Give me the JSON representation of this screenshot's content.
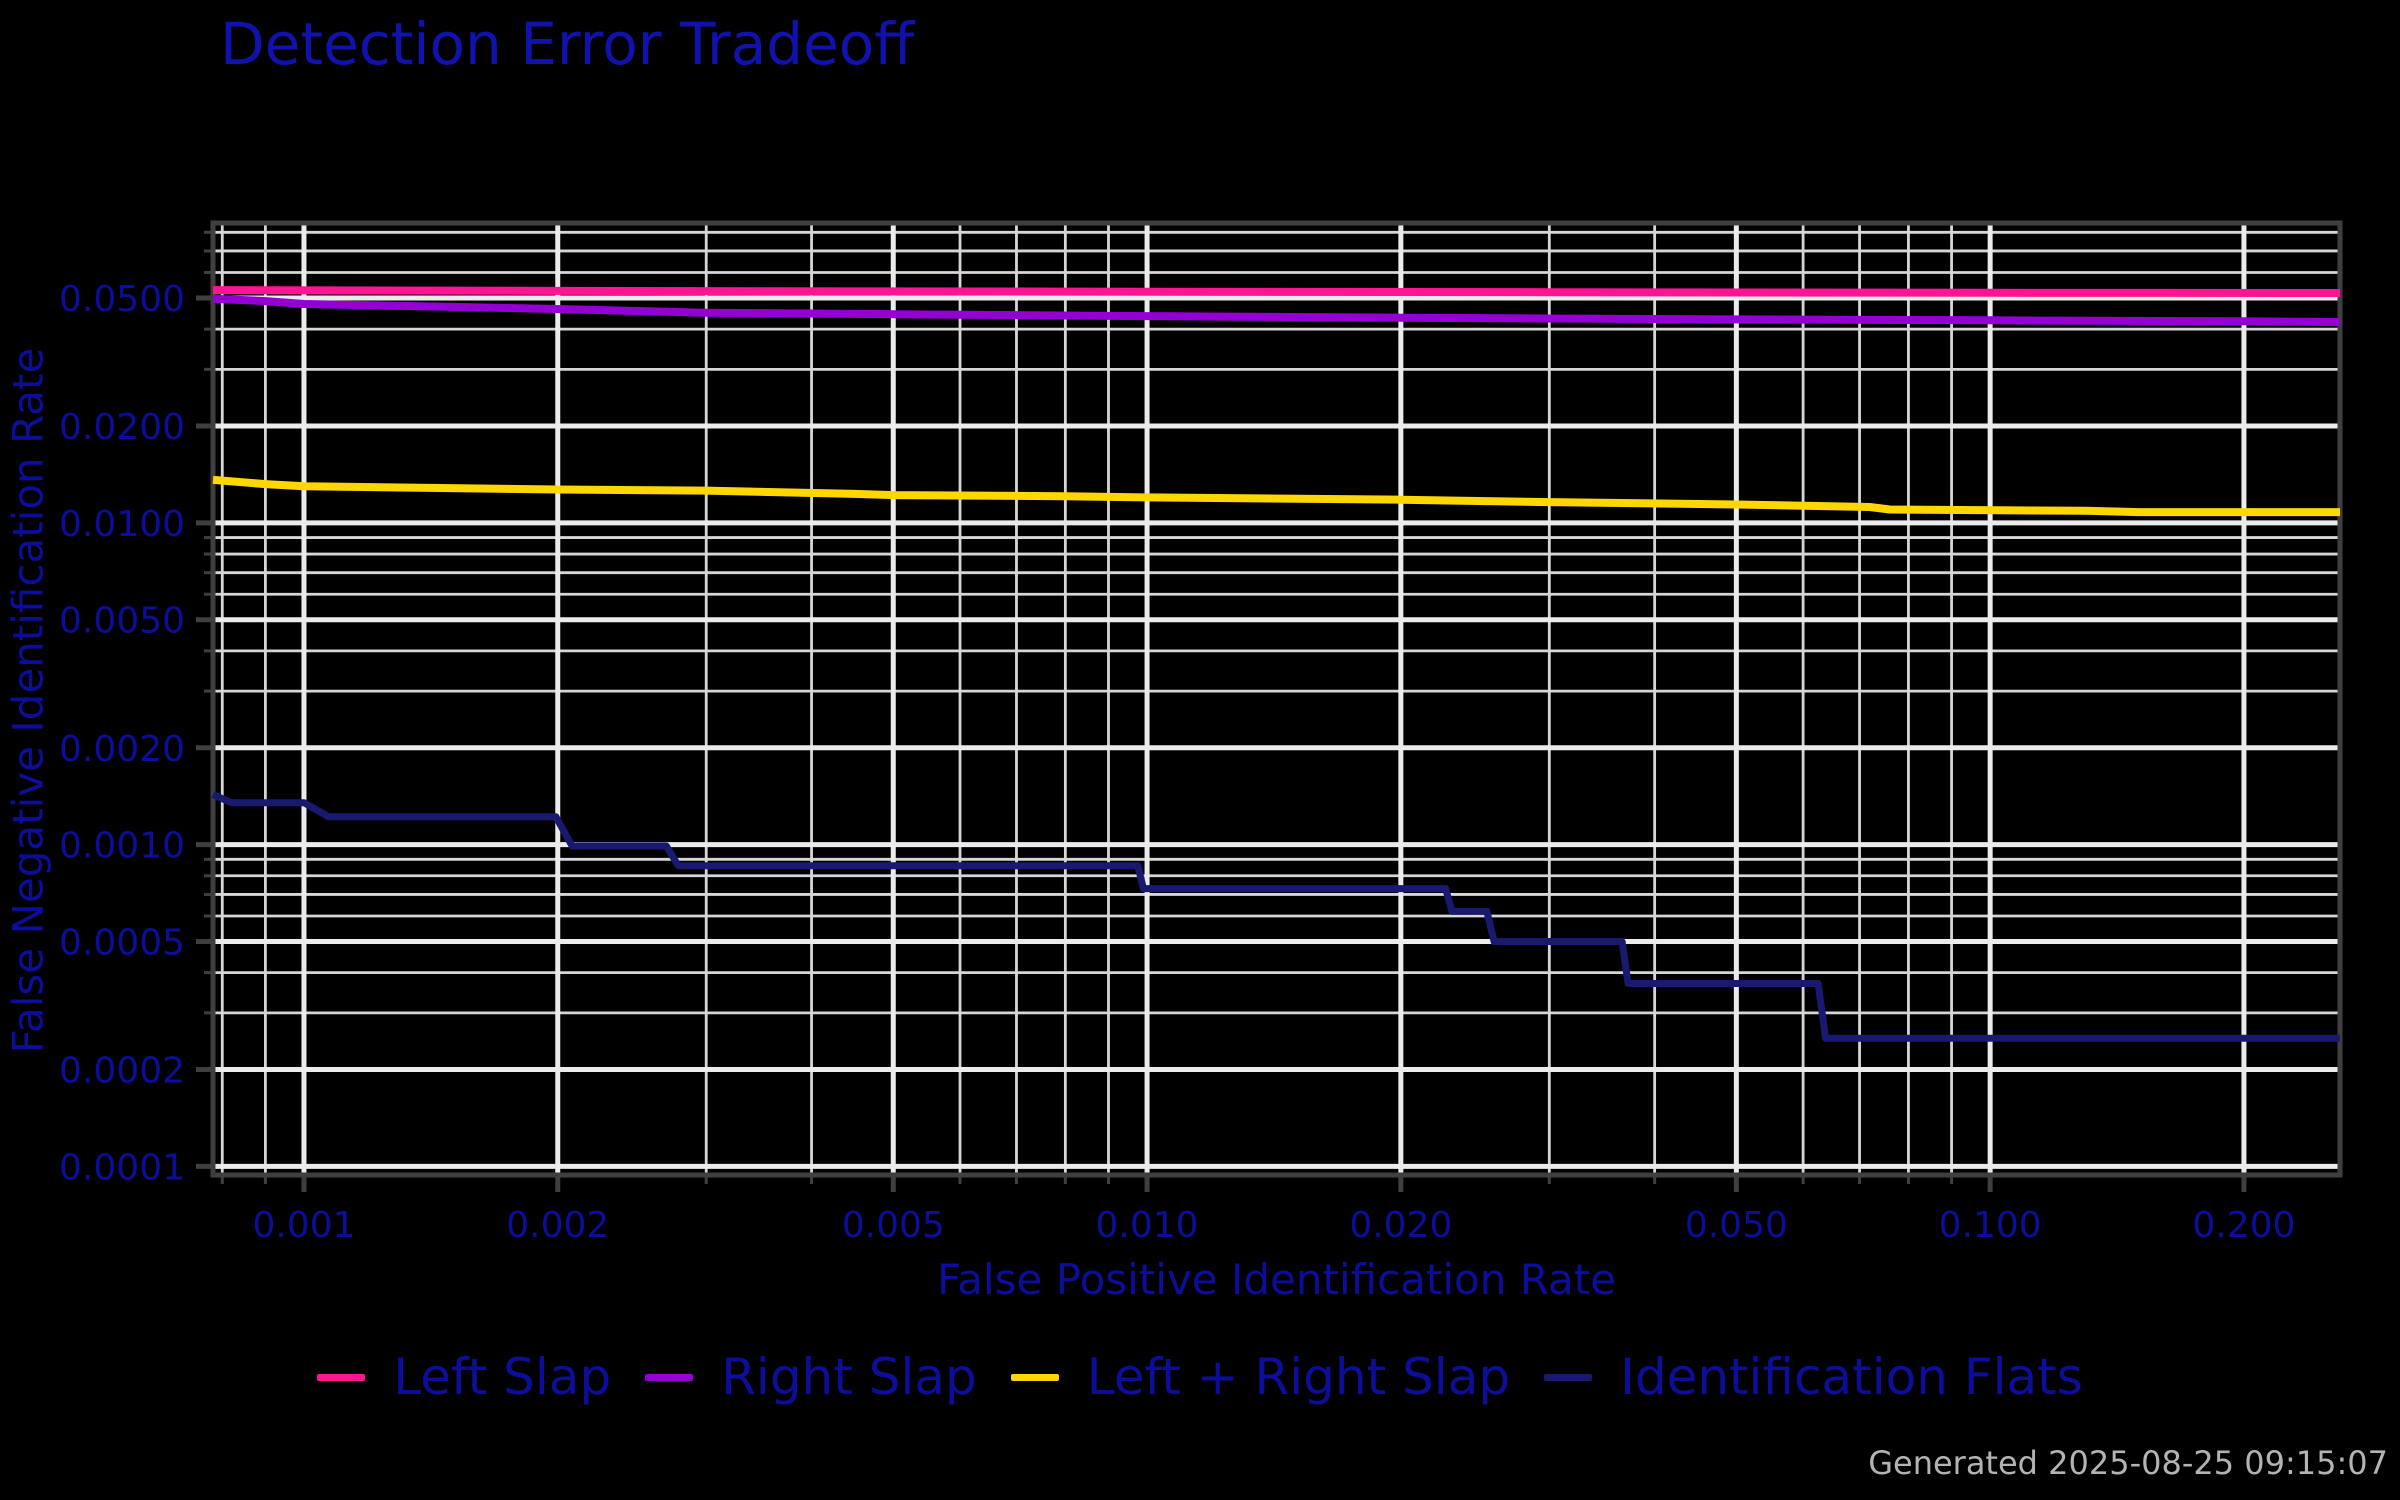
{
  "figure": {
    "title": "Detection Error Tradeoff",
    "timestamp": "Generated 2025-08-25 09:15:07",
    "colors": {
      "background": "#000000",
      "title_blue": "#1111ad",
      "text_blue": "#0d0d9c",
      "timestamp_gray": "#b3b3b3",
      "grid_major": "#ebebeb",
      "grid_minor": "#d6d6d6",
      "spine": "#3f3f3f",
      "tick_mark": "#3f3f3f"
    }
  },
  "chart_data": {
    "type": "line",
    "title": "Detection Error Tradeoff",
    "xlabel": "False Positive Identification Rate",
    "ylabel": "False Negative Identification Rate",
    "xscale": "log",
    "yscale": "log",
    "xlim": [
      0.00078,
      0.26
    ],
    "ylim": [
      9.4e-05,
      0.0855
    ],
    "grid": {
      "on": true,
      "major_subs": [
        1,
        2,
        5
      ],
      "minor_subs": [
        3,
        4,
        6,
        7,
        8,
        9
      ]
    },
    "legend_position": "bottom-center",
    "x_ticks": [
      {
        "value": 0.001,
        "label": "0.001"
      },
      {
        "value": 0.002,
        "label": "0.002"
      },
      {
        "value": 0.005,
        "label": "0.005"
      },
      {
        "value": 0.01,
        "label": "0.010"
      },
      {
        "value": 0.02,
        "label": "0.020"
      },
      {
        "value": 0.05,
        "label": "0.050"
      },
      {
        "value": 0.1,
        "label": "0.100"
      },
      {
        "value": 0.2,
        "label": "0.200"
      }
    ],
    "y_ticks": [
      {
        "value": 0.05,
        "label": "0.0500"
      },
      {
        "value": 0.02,
        "label": "0.0200"
      },
      {
        "value": 0.01,
        "label": "0.0100"
      },
      {
        "value": 0.005,
        "label": "0.0050"
      },
      {
        "value": 0.002,
        "label": "0.0020"
      },
      {
        "value": 0.001,
        "label": "0.0010"
      },
      {
        "value": 0.0005,
        "label": "0.0005"
      },
      {
        "value": 0.0002,
        "label": "0.0002"
      },
      {
        "value": 0.0001,
        "label": "0.0001"
      }
    ],
    "series": [
      {
        "name": "Left Slap",
        "color": "#ff1493",
        "line_width": 8,
        "points": [
          [
            0.00078,
            0.0529
          ],
          [
            0.002,
            0.0526
          ],
          [
            0.005,
            0.0524
          ],
          [
            0.01,
            0.0523
          ],
          [
            0.03,
            0.0521
          ],
          [
            0.1,
            0.0519
          ],
          [
            0.26,
            0.0518
          ]
        ]
      },
      {
        "name": "Right Slap",
        "color": "#9400d3",
        "line_width": 8,
        "points": [
          [
            0.00078,
            0.0497
          ],
          [
            0.0009,
            0.0489
          ],
          [
            0.001,
            0.0479
          ],
          [
            0.0015,
            0.0469
          ],
          [
            0.002,
            0.0462
          ],
          [
            0.003,
            0.045
          ],
          [
            0.005,
            0.0445
          ],
          [
            0.01,
            0.0439
          ],
          [
            0.02,
            0.0434
          ],
          [
            0.05,
            0.0429
          ],
          [
            0.1,
            0.0426
          ],
          [
            0.2,
            0.0423
          ],
          [
            0.26,
            0.0421
          ]
        ]
      },
      {
        "name": "Left + Right Slap",
        "color": "#ffd700",
        "line_width": 8,
        "points": [
          [
            0.00078,
            0.0136
          ],
          [
            0.0009,
            0.0132
          ],
          [
            0.001,
            0.013
          ],
          [
            0.002,
            0.0127
          ],
          [
            0.003,
            0.0126
          ],
          [
            0.0045,
            0.0123
          ],
          [
            0.005,
            0.0122
          ],
          [
            0.008,
            0.0121
          ],
          [
            0.01,
            0.012
          ],
          [
            0.02,
            0.0118
          ],
          [
            0.03,
            0.0116
          ],
          [
            0.05,
            0.0114
          ],
          [
            0.072,
            0.0112
          ],
          [
            0.076,
            0.011
          ],
          [
            0.13,
            0.0109
          ],
          [
            0.15,
            0.0108
          ],
          [
            0.26,
            0.0108
          ]
        ]
      },
      {
        "name": "Identification Flats",
        "color": "#191970",
        "line_width": 7,
        "points": [
          [
            0.00078,
            0.00143
          ],
          [
            0.00082,
            0.00135
          ],
          [
            0.001,
            0.00135
          ],
          [
            0.00107,
            0.00122
          ],
          [
            0.00199,
            0.00122
          ],
          [
            0.00208,
            0.00099
          ],
          [
            0.00269,
            0.00099
          ],
          [
            0.00278,
            0.00086
          ],
          [
            0.00975,
            0.00086
          ],
          [
            0.0099,
            0.00073
          ],
          [
            0.0226,
            0.00073
          ],
          [
            0.023,
            0.00062
          ],
          [
            0.0253,
            0.00062
          ],
          [
            0.0258,
            0.0005
          ],
          [
            0.0366,
            0.0005
          ],
          [
            0.0372,
            0.00037
          ],
          [
            0.0625,
            0.00037
          ],
          [
            0.0638,
            0.00025
          ],
          [
            0.26,
            0.00025
          ]
        ]
      }
    ]
  }
}
